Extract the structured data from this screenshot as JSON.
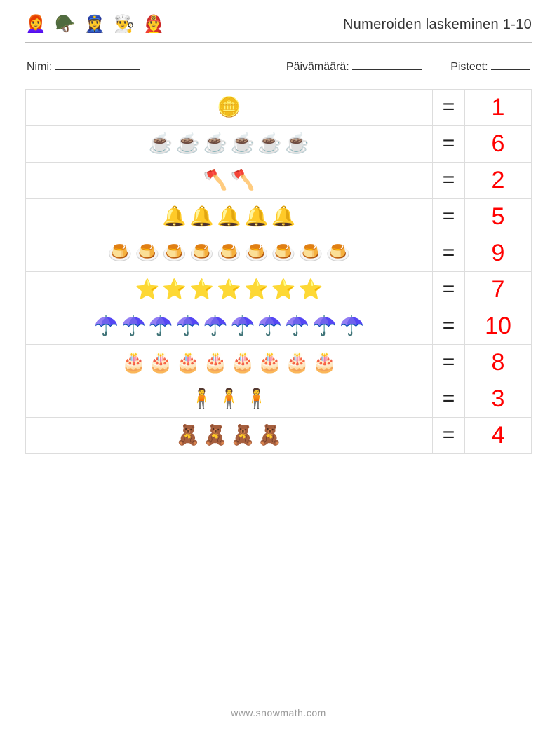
{
  "title": "Numeroiden laskeminen 1-10",
  "labels": {
    "name": "Nimi:",
    "date": "Päivämäärä:",
    "points": "Pisteet:"
  },
  "header_icons": [
    {
      "name": "woman-icon",
      "glyph": "👩‍🦰"
    },
    {
      "name": "soldier-icon",
      "glyph": "🪖"
    },
    {
      "name": "police-icon",
      "glyph": "👮‍♀️"
    },
    {
      "name": "chef-icon",
      "glyph": "👨‍🍳"
    },
    {
      "name": "firefighter-icon",
      "glyph": "👨‍🚒"
    }
  ],
  "equals": "=",
  "answer_color": "#ff0000",
  "border_color": "#dddddd",
  "rows": [
    {
      "icon": "🪙",
      "icon_name": "coins-icon",
      "count": 1,
      "answer": "1"
    },
    {
      "icon": "☕",
      "icon_name": "teacup-icon",
      "count": 6,
      "answer": "6"
    },
    {
      "icon": "🪓",
      "icon_name": "axe-icon",
      "count": 2,
      "answer": "2"
    },
    {
      "icon": "🔔",
      "icon_name": "bell-icon",
      "count": 5,
      "answer": "5"
    },
    {
      "icon": "🍮",
      "icon_name": "pudding-icon",
      "count": 9,
      "answer": "9"
    },
    {
      "icon": "⭐",
      "icon_name": "starfish-icon",
      "count": 7,
      "answer": "7",
      "color": "#ed8a7a"
    },
    {
      "icon": "☂️",
      "icon_name": "umbrella-icon",
      "count": 10,
      "answer": "10"
    },
    {
      "icon": "🎂",
      "icon_name": "cake-icon",
      "count": 8,
      "answer": "8"
    },
    {
      "icon": "🧍",
      "icon_name": "scarecrow-icon",
      "count": 3,
      "answer": "3",
      "color": "#d04a3d"
    },
    {
      "icon": "🧸",
      "icon_name": "teddybear-icon",
      "count": 4,
      "answer": "4"
    }
  ],
  "footer": "www.snowmath.com"
}
